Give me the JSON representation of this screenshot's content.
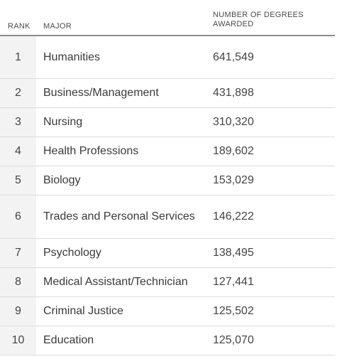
{
  "table": {
    "headers": {
      "rank": "RANK",
      "major": "MAJOR",
      "degrees": "NUMBER OF DEGREES AWARDED"
    }
  },
  "chart_data": {
    "type": "table",
    "columns": [
      "RANK",
      "MAJOR",
      "NUMBER OF DEGREES AWARDED"
    ],
    "rows": [
      {
        "rank": "1",
        "major": "Humanities",
        "degrees": "641,549"
      },
      {
        "rank": "2",
        "major": "Business/Management",
        "degrees": "431,898"
      },
      {
        "rank": "3",
        "major": "Nursing",
        "degrees": "310,320"
      },
      {
        "rank": "4",
        "major": "Health Professions",
        "degrees": "189,602"
      },
      {
        "rank": "5",
        "major": "Biology",
        "degrees": "153,029"
      },
      {
        "rank": "6",
        "major": "Trades and Personal Services",
        "degrees": "146,222"
      },
      {
        "rank": "7",
        "major": "Psychology",
        "degrees": "138,495"
      },
      {
        "rank": "8",
        "major": "Medical Assistant/Technician",
        "degrees": "127,441"
      },
      {
        "rank": "9",
        "major": "Criminal Justice",
        "degrees": "125,502"
      },
      {
        "rank": "10",
        "major": "Education",
        "degrees": "125,070"
      }
    ]
  }
}
